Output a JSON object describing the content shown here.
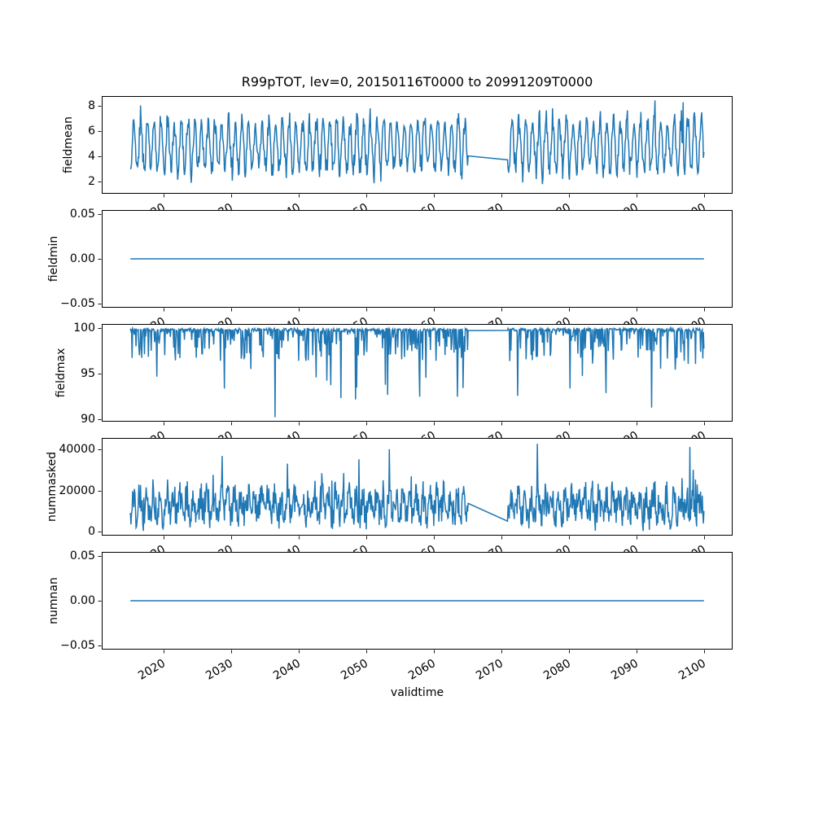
{
  "chart_data": {
    "type": "line",
    "title": "R99pTOT, lev=0, 20150116T0000 to 20991209T0000",
    "xlabel": "validtime",
    "line_color": "#1f77b4",
    "axis_color": "#000000",
    "background_color": "#ffffff",
    "line_width": 1.5,
    "xlim": [
      2010.8,
      2104.2
    ],
    "x_ticks": [
      2020,
      2030,
      2040,
      2050,
      2060,
      2070,
      2080,
      2090,
      2100
    ],
    "x_tick_labels": [
      "2020",
      "2030",
      "2040",
      "2050",
      "2060",
      "2070",
      "2080",
      "2090",
      "2100"
    ],
    "x_start_year": 2015,
    "x_end_year": 2099,
    "points_per_year": 12,
    "gap": {
      "start": 2065.05,
      "end": 2070.83,
      "note": "missing data bridged by straight connecting line"
    },
    "panels": [
      {
        "ylabel": "fieldmean",
        "ytick_values": [
          8,
          6,
          4,
          2
        ],
        "ytick_labels": [
          "8",
          "6",
          "4",
          "2"
        ],
        "ylim": [
          1.0,
          8.8
        ],
        "pattern": "seasonal-noise",
        "base": 4.85,
        "amplitude": 1.95,
        "noise": 1.5,
        "min": 1.62,
        "max": 8.45,
        "seed": 11,
        "forced_points": [
          [
            2016.54,
            8.05
          ],
          [
            2092.71,
            8.45
          ],
          [
            2096.9,
            8.3
          ]
        ]
      },
      {
        "ylabel": "fieldmin",
        "ytick_values": [
          0.05,
          0.0,
          -0.05
        ],
        "ytick_labels": [
          "0.05",
          "0.00",
          "−0.05"
        ],
        "ylim": [
          -0.055,
          0.055
        ],
        "pattern": "constant",
        "value": 0.0
      },
      {
        "ylabel": "fieldmax",
        "ytick_values": [
          100,
          95,
          90
        ],
        "ytick_labels": [
          "100",
          "95",
          "90"
        ],
        "ylim": [
          89.76,
          100.49
        ],
        "pattern": "baseline-downspikes",
        "baseline": 100,
        "seed": 23,
        "forced_points": [
          [
            2036.5,
            90.25
          ],
          [
            2046.2,
            92.35
          ],
          [
            2048.4,
            92.2
          ],
          [
            2053.1,
            92.7
          ],
          [
            2057.9,
            92.5
          ],
          [
            2063.5,
            92.5
          ],
          [
            2072.4,
            92.6
          ],
          [
            2080.1,
            93.4
          ],
          [
            2085.5,
            92.9
          ],
          [
            2092.2,
            91.3
          ]
        ]
      },
      {
        "ylabel": "nummasked",
        "ytick_values": [
          40000,
          20000,
          0
        ],
        "ytick_labels": [
          "40000",
          "20000",
          "0"
        ],
        "ylim": [
          -2000,
          45600
        ],
        "pattern": "noisy",
        "base": 12500,
        "noise": 7800,
        "min": 250,
        "max": 43200,
        "seed": 37,
        "forced_points": [
          [
            2028.63,
            36800
          ],
          [
            2048.88,
            35200
          ],
          [
            2053.38,
            40100
          ],
          [
            2075.3,
            42700
          ],
          [
            2097.88,
            41200
          ]
        ]
      },
      {
        "ylabel": "numnan",
        "ytick_values": [
          0.05,
          0.0,
          -0.05
        ],
        "ytick_labels": [
          "0.05",
          "0.00",
          "−0.05"
        ],
        "ylim": [
          -0.055,
          0.055
        ],
        "pattern": "constant",
        "value": 0.0
      }
    ]
  }
}
